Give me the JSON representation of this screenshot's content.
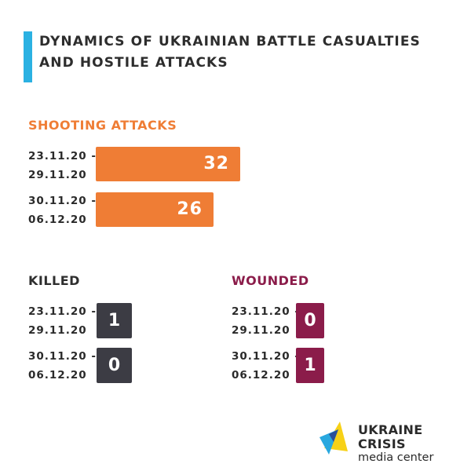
{
  "title": {
    "line1": "DYNAMICS OF UKRAINIAN BATTLE CASUALTIES",
    "line2": "AND HOSTILE ATTACKS"
  },
  "colors": {
    "accent_bar": "#2bb1e2",
    "shooting": "#ef7d35",
    "killed": "#3c3c44",
    "wounded": "#8b1c4a"
  },
  "chart_data": [
    {
      "type": "bar",
      "title": "SHOOTING ATTACKS",
      "orientation": "horizontal",
      "categories": [
        {
          "line1": "23.11.20 -",
          "line2": "29.11.20"
        },
        {
          "line1": "30.11.20 -",
          "line2": "06.12.20"
        }
      ],
      "values": [
        32,
        26
      ]
    },
    {
      "type": "table",
      "title": "KILLED",
      "categories": [
        {
          "line1": "23.11.20 -",
          "line2": "29.11.20"
        },
        {
          "line1": "30.11.20 -",
          "line2": "06.12.20"
        }
      ],
      "values": [
        1,
        0
      ]
    },
    {
      "type": "table",
      "title": "WOUNDED",
      "categories": [
        {
          "line1": "23.11.20 -",
          "line2": "29.11.20"
        },
        {
          "line1": "30.11.20 -",
          "line2": "06.12.20"
        }
      ],
      "values": [
        0,
        1
      ]
    }
  ],
  "logo": {
    "line1": "UKRAINE CRISIS",
    "line2": "media center"
  }
}
